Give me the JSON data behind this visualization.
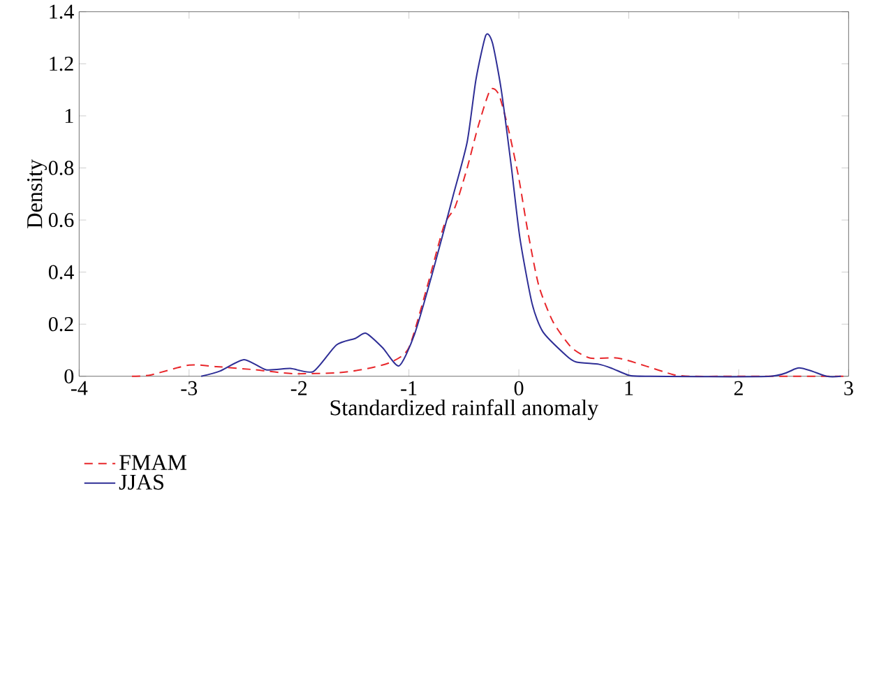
{
  "chart_data": {
    "type": "line",
    "xlabel": "Standardized rainfall anomaly",
    "ylabel": "Density",
    "xlim": [
      -4,
      3
    ],
    "ylim": [
      0,
      1.4
    ],
    "xticks": [
      -4,
      -3,
      -2,
      -1,
      0,
      1,
      2,
      3
    ],
    "yticks": [
      0,
      0.2,
      0.4,
      0.6,
      0.8,
      1,
      1.2,
      1.4
    ],
    "grid": false,
    "legend": "bottom left",
    "marker": "none",
    "series": [
      {
        "name": "FMAM",
        "color": "#e8262a",
        "line_style": "dashed",
        "x": [
          -3.52,
          -3.35,
          -3.0,
          -2.75,
          -2.4,
          -2.05,
          -1.63,
          -1.37,
          -1.16,
          -1.0,
          -0.83,
          -0.68,
          -0.58,
          -0.47,
          -0.37,
          -0.26,
          -0.18,
          -0.09,
          0,
          0.08,
          0.18,
          0.31,
          0.48,
          0.65,
          0.9,
          1.15,
          1.4,
          1.57,
          2.0,
          2.5,
          3.0
        ],
        "values": [
          0,
          0.005,
          0.043,
          0.037,
          0.025,
          0.01,
          0.014,
          0.03,
          0.055,
          0.11,
          0.35,
          0.58,
          0.65,
          0.8,
          0.96,
          1.1,
          1.08,
          0.94,
          0.76,
          0.56,
          0.35,
          0.21,
          0.11,
          0.07,
          0.07,
          0.04,
          0.007,
          0,
          0,
          0,
          0
        ]
      },
      {
        "name": "JJAS",
        "color": "#2e2e96",
        "line_style": "solid",
        "x": [
          -2.89,
          -2.72,
          -2.5,
          -2.3,
          -2.08,
          -1.87,
          -1.66,
          -1.49,
          -1.39,
          -1.24,
          -1.09,
          -0.95,
          -0.79,
          -0.6,
          -0.47,
          -0.39,
          -0.3,
          -0.24,
          -0.16,
          -0.07,
          0.01,
          0.12,
          0.22,
          0.43,
          0.52,
          0.73,
          0.85,
          1.0,
          1.15,
          2.29,
          2.55,
          2.8,
          2.93
        ],
        "values": [
          0,
          0.02,
          0.064,
          0.025,
          0.03,
          0.018,
          0.12,
          0.145,
          0.165,
          0.11,
          0.04,
          0.16,
          0.39,
          0.69,
          0.9,
          1.14,
          1.31,
          1.28,
          1.1,
          0.81,
          0.53,
          0.28,
          0.17,
          0.08,
          0.055,
          0.046,
          0.03,
          0.004,
          0,
          0,
          0.032,
          0,
          0
        ]
      }
    ]
  }
}
